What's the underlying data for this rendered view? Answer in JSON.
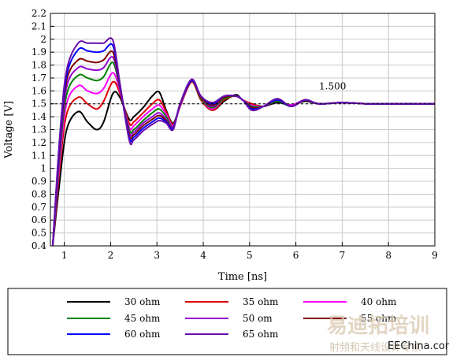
{
  "chart_data": {
    "type": "line",
    "xlabel": "Time [ns]",
    "ylabel": "Voltage [V]",
    "xlim": [
      0.7,
      9.0
    ],
    "ylim": [
      0.4,
      2.2
    ],
    "xticks": [
      1,
      2,
      3,
      4,
      5,
      6,
      7,
      8,
      9
    ],
    "yticks": [
      0.4,
      0.5,
      0.6,
      0.7,
      0.8,
      0.9,
      1,
      1.1,
      1.2,
      1.3,
      1.4,
      1.5,
      1.6,
      1.7,
      1.8,
      1.9,
      2,
      2.1,
      2.2
    ],
    "ytick_labels": [
      "0.4",
      "0.5",
      "0.6",
      "0.7",
      "0.8",
      "0.9",
      "1",
      "1.1",
      "1.2",
      "1.3",
      "1.4",
      "1.5",
      "1.6",
      "1.7",
      "1.8",
      "1.9",
      "2",
      "2.1",
      "2.2"
    ],
    "grid": true,
    "reference_line": {
      "y": 1.5,
      "label": "1.500",
      "style": "dashed"
    },
    "legend_position": "bottom",
    "series": [
      {
        "name": "30 ohm",
        "color": "#000000",
        "x": [
          0.75,
          0.9,
          1.05,
          1.3,
          1.5,
          1.7,
          1.85,
          2.05,
          2.2,
          2.4,
          2.5,
          2.7,
          2.9,
          3.05,
          3.2,
          3.35,
          3.5,
          3.75,
          3.95,
          4.2,
          4.45,
          4.7,
          4.85,
          5.05,
          5.3,
          5.6,
          5.9,
          6.2,
          6.5,
          7.0,
          7.5,
          8.0,
          8.5,
          9.0
        ],
        "y": [
          0.4,
          0.9,
          1.3,
          1.44,
          1.36,
          1.3,
          1.36,
          1.58,
          1.55,
          1.38,
          1.4,
          1.47,
          1.56,
          1.59,
          1.45,
          1.35,
          1.48,
          1.67,
          1.53,
          1.45,
          1.52,
          1.57,
          1.53,
          1.5,
          1.48,
          1.51,
          1.49,
          1.52,
          1.5,
          1.51,
          1.5,
          1.5,
          1.5,
          1.5
        ]
      },
      {
        "name": "35 ohm",
        "color": "#e00000",
        "x": [
          0.75,
          0.9,
          1.05,
          1.3,
          1.5,
          1.7,
          1.85,
          2.05,
          2.2,
          2.4,
          2.5,
          2.7,
          2.9,
          3.05,
          3.2,
          3.35,
          3.5,
          3.75,
          3.95,
          4.2,
          4.45,
          4.7,
          4.85,
          5.05,
          5.3,
          5.6,
          5.9,
          6.2,
          6.5,
          7.0,
          7.5,
          8.0,
          8.5,
          9.0
        ],
        "y": [
          0.4,
          1.0,
          1.42,
          1.55,
          1.5,
          1.46,
          1.52,
          1.67,
          1.58,
          1.35,
          1.36,
          1.43,
          1.5,
          1.53,
          1.44,
          1.34,
          1.48,
          1.67,
          1.53,
          1.45,
          1.53,
          1.56,
          1.53,
          1.5,
          1.48,
          1.52,
          1.49,
          1.53,
          1.5,
          1.51,
          1.5,
          1.5,
          1.5,
          1.5
        ]
      },
      {
        "name": "40 ohm",
        "color": "#ff00ff",
        "x": [
          0.75,
          0.9,
          1.05,
          1.3,
          1.5,
          1.7,
          1.85,
          2.05,
          2.2,
          2.4,
          2.5,
          2.7,
          2.9,
          3.05,
          3.2,
          3.35,
          3.5,
          3.75,
          3.95,
          4.2,
          4.45,
          4.7,
          4.85,
          5.05,
          5.3,
          5.6,
          5.9,
          6.2,
          6.5,
          7.0,
          7.5,
          8.0,
          8.5,
          9.0
        ],
        "y": [
          0.4,
          1.05,
          1.5,
          1.64,
          1.6,
          1.58,
          1.62,
          1.74,
          1.6,
          1.32,
          1.33,
          1.4,
          1.46,
          1.49,
          1.42,
          1.33,
          1.48,
          1.68,
          1.54,
          1.46,
          1.54,
          1.56,
          1.53,
          1.49,
          1.48,
          1.52,
          1.49,
          1.53,
          1.5,
          1.51,
          1.5,
          1.5,
          1.5,
          1.5
        ]
      },
      {
        "name": "45 ohm",
        "color": "#008000",
        "x": [
          0.75,
          0.9,
          1.05,
          1.3,
          1.5,
          1.7,
          1.85,
          2.05,
          2.2,
          2.4,
          2.5,
          2.7,
          2.9,
          3.05,
          3.2,
          3.35,
          3.5,
          3.75,
          3.95,
          4.2,
          4.45,
          4.7,
          4.85,
          5.05,
          5.3,
          5.6,
          5.9,
          6.2,
          6.5,
          7.0,
          7.5,
          8.0,
          8.5,
          9.0
        ],
        "y": [
          0.4,
          1.1,
          1.57,
          1.72,
          1.7,
          1.68,
          1.71,
          1.82,
          1.62,
          1.3,
          1.3,
          1.37,
          1.43,
          1.46,
          1.4,
          1.32,
          1.49,
          1.68,
          1.54,
          1.47,
          1.54,
          1.56,
          1.53,
          1.48,
          1.48,
          1.52,
          1.48,
          1.53,
          1.5,
          1.51,
          1.5,
          1.5,
          1.5,
          1.5
        ]
      },
      {
        "name": "50 om",
        "color": "#9400d3",
        "x": [
          0.75,
          0.9,
          1.05,
          1.3,
          1.5,
          1.7,
          1.85,
          2.05,
          2.2,
          2.4,
          2.5,
          2.7,
          2.9,
          3.05,
          3.2,
          3.35,
          3.5,
          3.75,
          3.95,
          4.2,
          4.45,
          4.7,
          4.85,
          5.05,
          5.3,
          5.6,
          5.9,
          6.2,
          6.5,
          7.0,
          7.5,
          8.0,
          8.5,
          9.0
        ],
        "y": [
          0.4,
          1.14,
          1.63,
          1.78,
          1.77,
          1.76,
          1.78,
          1.86,
          1.63,
          1.28,
          1.28,
          1.35,
          1.4,
          1.43,
          1.38,
          1.32,
          1.49,
          1.68,
          1.55,
          1.48,
          1.55,
          1.56,
          1.53,
          1.47,
          1.48,
          1.53,
          1.48,
          1.53,
          1.5,
          1.51,
          1.5,
          1.5,
          1.5,
          1.5
        ]
      },
      {
        "name": "55 ohm",
        "color": "#800000",
        "x": [
          0.75,
          0.9,
          1.05,
          1.3,
          1.5,
          1.7,
          1.85,
          2.05,
          2.2,
          2.4,
          2.5,
          2.7,
          2.9,
          3.05,
          3.2,
          3.35,
          3.5,
          3.75,
          3.95,
          4.2,
          4.45,
          4.7,
          4.85,
          5.05,
          5.3,
          5.6,
          5.9,
          6.2,
          6.5,
          7.0,
          7.5,
          8.0,
          8.5,
          9.0
        ],
        "y": [
          0.4,
          1.18,
          1.68,
          1.84,
          1.83,
          1.82,
          1.84,
          1.9,
          1.64,
          1.26,
          1.26,
          1.33,
          1.38,
          1.41,
          1.37,
          1.31,
          1.49,
          1.68,
          1.55,
          1.49,
          1.55,
          1.56,
          1.53,
          1.47,
          1.48,
          1.53,
          1.48,
          1.53,
          1.5,
          1.51,
          1.5,
          1.5,
          1.5,
          1.5
        ]
      },
      {
        "name": "60 ohm",
        "color": "#0000ff",
        "x": [
          0.75,
          0.9,
          1.05,
          1.3,
          1.5,
          1.7,
          1.85,
          2.05,
          2.2,
          2.4,
          2.5,
          2.7,
          2.9,
          3.05,
          3.2,
          3.35,
          3.5,
          3.75,
          3.95,
          4.2,
          4.45,
          4.7,
          4.85,
          5.05,
          5.3,
          5.6,
          5.9,
          6.2,
          6.5,
          7.0,
          7.5,
          8.0,
          8.5,
          9.0
        ],
        "y": [
          0.4,
          1.21,
          1.72,
          1.92,
          1.91,
          1.9,
          1.91,
          1.95,
          1.65,
          1.24,
          1.24,
          1.31,
          1.36,
          1.39,
          1.36,
          1.31,
          1.5,
          1.68,
          1.56,
          1.5,
          1.56,
          1.56,
          1.53,
          1.46,
          1.48,
          1.53,
          1.48,
          1.53,
          1.5,
          1.51,
          1.5,
          1.5,
          1.5,
          1.5
        ]
      },
      {
        "name": "65 ohm",
        "color": "#6a0dad",
        "x": [
          0.75,
          0.9,
          1.05,
          1.3,
          1.5,
          1.7,
          1.85,
          2.05,
          2.2,
          2.4,
          2.5,
          2.7,
          2.9,
          3.05,
          3.2,
          3.35,
          3.5,
          3.75,
          3.95,
          4.2,
          4.45,
          4.7,
          4.85,
          5.05,
          5.3,
          5.6,
          5.9,
          6.2,
          6.5,
          7.0,
          7.5,
          8.0,
          8.5,
          9.0
        ],
        "y": [
          0.4,
          1.24,
          1.76,
          1.97,
          1.97,
          1.97,
          1.97,
          1.99,
          1.66,
          1.22,
          1.22,
          1.29,
          1.34,
          1.37,
          1.35,
          1.3,
          1.5,
          1.69,
          1.56,
          1.51,
          1.56,
          1.56,
          1.53,
          1.45,
          1.48,
          1.54,
          1.48,
          1.53,
          1.5,
          1.51,
          1.5,
          1.5,
          1.5,
          1.5
        ]
      }
    ]
  },
  "watermark": {
    "chinese_brand": "易迪拓培训",
    "chinese_tagline": "射频和天线设计专家",
    "site": "EEChina.com"
  }
}
